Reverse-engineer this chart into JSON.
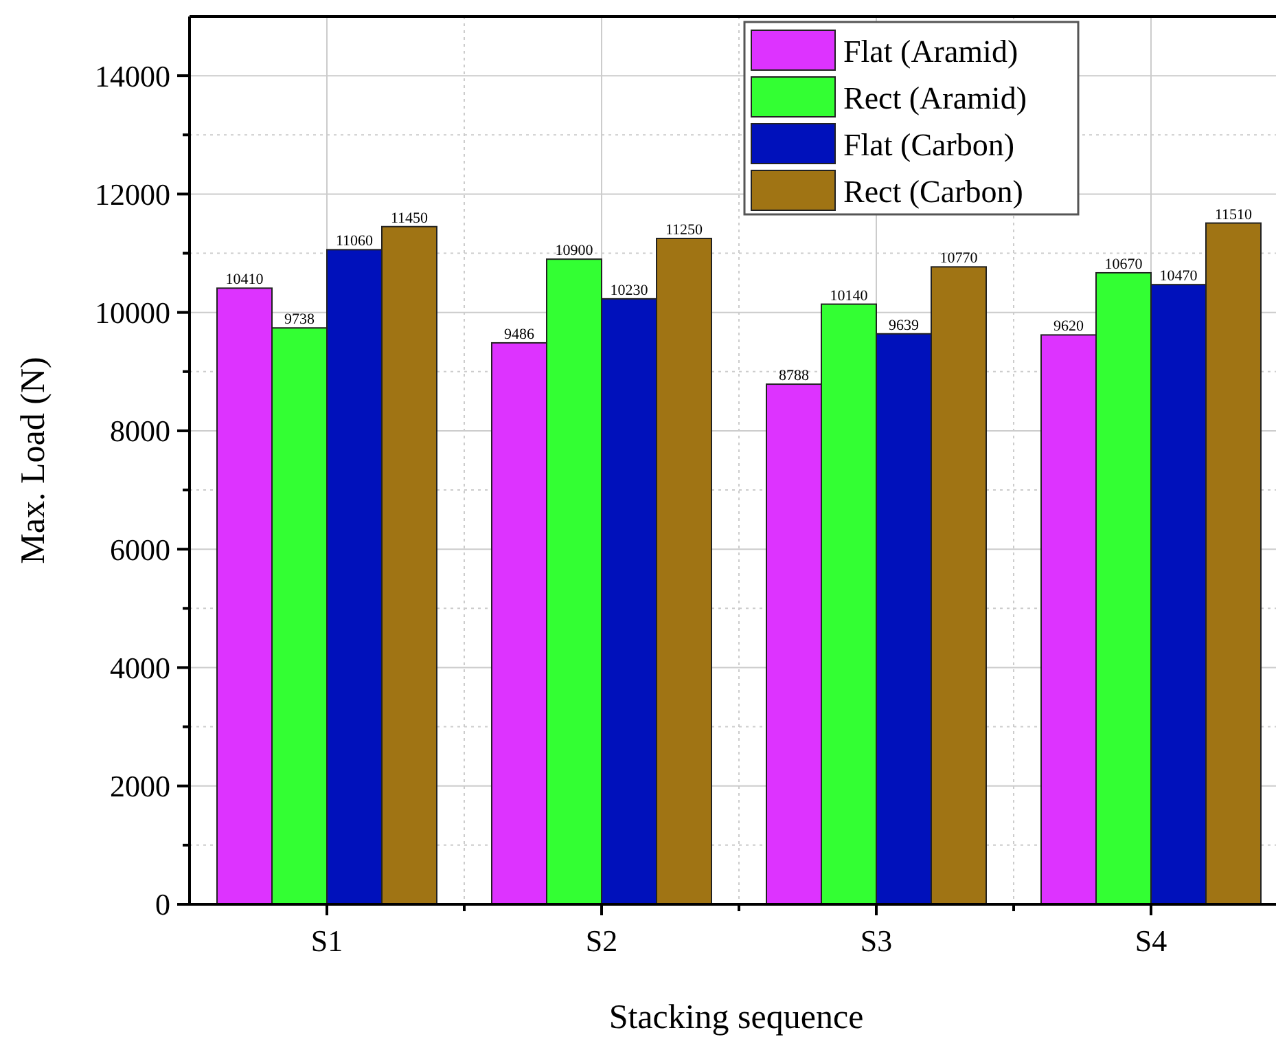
{
  "chart_data": {
    "type": "bar",
    "xlabel": "Stacking sequence",
    "ylabel": "Max. Load (N)",
    "categories": [
      "S1",
      "S2",
      "S3",
      "S4"
    ],
    "series": [
      {
        "name": "Flat (Aramid)",
        "color": "#dd33ff",
        "values": [
          10410,
          9486,
          8788,
          9620
        ]
      },
      {
        "name": "Rect (Aramid)",
        "color": "#33ff33",
        "values": [
          9738,
          10900,
          10140,
          10670
        ]
      },
      {
        "name": "Flat (Carbon)",
        "color": "#0011bb",
        "values": [
          11060,
          10230,
          9639,
          10470
        ]
      },
      {
        "name": "Rect (Carbon)",
        "color": "#a07414",
        "values": [
          11450,
          11250,
          10770,
          11510
        ]
      }
    ],
    "ylim": [
      0,
      15000
    ],
    "yticks": [
      0,
      {
        "value": 1000,
        "label": null
      },
      2000,
      {
        "value": 3000,
        "label": null
      },
      4000,
      {
        "value": 5000,
        "label": null
      },
      6000,
      {
        "value": 7000,
        "label": null
      },
      8000,
      {
        "value": 9000,
        "label": null
      },
      10000,
      {
        "value": 11000,
        "label": null
      },
      12000,
      {
        "value": 13000,
        "label": null
      },
      14000
    ],
    "grid": true,
    "legend": "top right",
    "data_labels": true
  }
}
